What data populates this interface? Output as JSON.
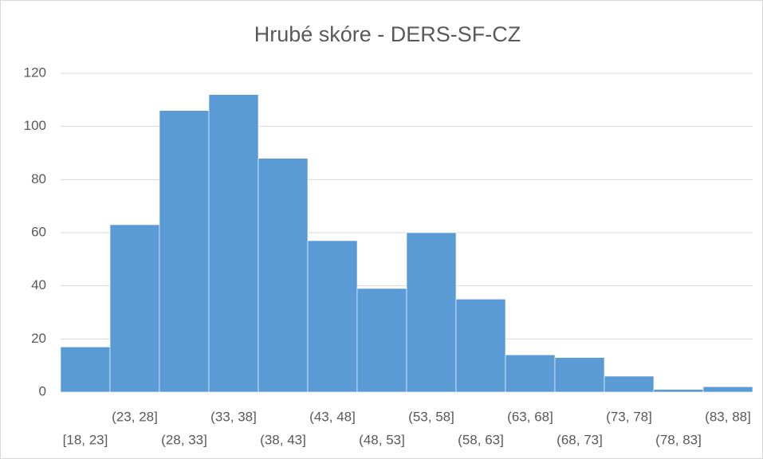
{
  "chart_data": {
    "type": "bar",
    "title": "Hrubé skóre - DERS-SF-CZ",
    "categories": [
      "[18, 23]",
      "(23, 28]",
      "(28, 33]",
      "(33, 38]",
      "(38, 43]",
      "(43, 48]",
      "(48, 53]",
      "(53, 58]",
      "(58, 63]",
      "(63, 68]",
      "(68, 73]",
      "(73, 78]",
      "(78, 83]",
      "(83, 88]"
    ],
    "values": [
      17,
      63,
      106,
      112,
      88,
      57,
      39,
      60,
      35,
      14,
      13,
      6,
      1,
      2
    ],
    "color": "#5b9bd5",
    "ylim": [
      0,
      120
    ],
    "yticks": [
      0,
      20,
      40,
      60,
      80,
      100,
      120
    ],
    "grid": true
  }
}
